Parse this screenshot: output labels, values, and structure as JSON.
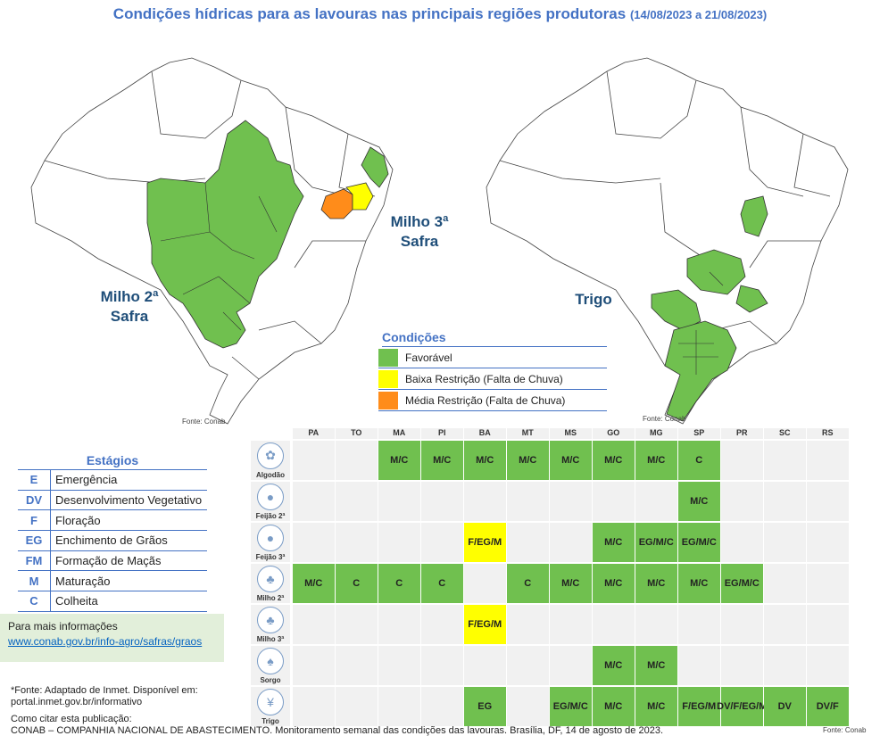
{
  "title": {
    "main": "Condições hídricas para as lavouras nas principais regiões produtoras",
    "dates": "(14/08/2023 a 21/08/2023)"
  },
  "colors": {
    "favoravel": "#70c04f",
    "baixa": "#ffff00",
    "media": "#ff8c1a",
    "accent": "#4472c4",
    "label": "#1f4e79",
    "cell": "#f1f1f1"
  },
  "maps": {
    "left": {
      "label_line1": "Milho 2ª",
      "label_line2": "Safra",
      "label_alt_line1": "Milho 3ª",
      "label_alt_line2": "Safra",
      "fonte": "Fonte: Conab"
    },
    "right": {
      "label": "Trigo",
      "fonte": "Fonte: Conab"
    }
  },
  "legend": {
    "title": "Condições",
    "items": [
      {
        "label": "Favorável",
        "color": "#70c04f"
      },
      {
        "label": "Baixa Restrição (Falta de Chuva)",
        "color": "#ffff00"
      },
      {
        "label": "Média Restrição (Falta de Chuva)",
        "color": "#ff8c1a"
      }
    ]
  },
  "stages": {
    "title": "Estágios",
    "items": [
      {
        "code": "E",
        "name": "Emergência"
      },
      {
        "code": "DV",
        "name": "Desenvolvimento Vegetativo"
      },
      {
        "code": "F",
        "name": "Floração"
      },
      {
        "code": "EG",
        "name": "Enchimento de Grãos"
      },
      {
        "code": "FM",
        "name": "Formação de Maçãs"
      },
      {
        "code": "M",
        "name": "Maturação"
      },
      {
        "code": "C",
        "name": "Colheita"
      }
    ]
  },
  "info": {
    "line1": "Para mais informações",
    "link": "www.conab.gov.br/info-agro/safras/graos"
  },
  "footer": {
    "fonte_line": "*Fonte: Adaptado de Inmet. Disponível em:",
    "fonte_link": "portal.inmet.gov.br/informativo",
    "citar": "Como citar esta publicação:",
    "citation": "CONAB – COMPANHIA NACIONAL DE ABASTECIMENTO. Monitoramento semanal das condições das lavouras. Brasília, DF, 14 de agosto de 2023.",
    "fonte_table": "Fonte: Conab"
  },
  "table": {
    "states": [
      "PA",
      "TO",
      "MA",
      "PI",
      "BA",
      "MT",
      "MS",
      "GO",
      "MG",
      "SP",
      "PR",
      "SC",
      "RS"
    ],
    "crops": [
      {
        "name": "Algodão",
        "icon": "✿",
        "cells": [
          "",
          "",
          "g:M/C",
          "g:M/C",
          "g:M/C",
          "g:M/C",
          "g:M/C",
          "g:M/C",
          "g:M/C",
          "g:C",
          "",
          "",
          ""
        ]
      },
      {
        "name": "Feijão 2ª",
        "icon": "●",
        "cells": [
          "",
          "",
          "",
          "",
          "",
          "",
          "",
          "",
          "",
          "g:M/C",
          "",
          "",
          ""
        ]
      },
      {
        "name": "Feijão 3ª",
        "icon": "●",
        "cells": [
          "",
          "",
          "",
          "",
          "y:F/EG/M",
          "",
          "",
          "g:M/C",
          "g:EG/M/C",
          "g:EG/M/C",
          "",
          "",
          ""
        ]
      },
      {
        "name": "Milho 2ª",
        "icon": "♣",
        "cells": [
          "g:M/C",
          "g:C",
          "g:C",
          "g:C",
          "",
          "g:C",
          "g:M/C",
          "g:M/C",
          "g:M/C",
          "g:M/C",
          "g:EG/M/C",
          "",
          ""
        ]
      },
      {
        "name": "Milho 3ª",
        "icon": "♣",
        "cells": [
          "",
          "",
          "",
          "",
          "y:F/EG/M",
          "",
          "",
          "",
          "",
          "",
          "",
          "",
          ""
        ]
      },
      {
        "name": "Sorgo",
        "icon": "♠",
        "cells": [
          "",
          "",
          "",
          "",
          "",
          "",
          "",
          "g:M/C",
          "g:M/C",
          "",
          "",
          "",
          ""
        ]
      },
      {
        "name": "Trigo",
        "icon": "¥",
        "cells": [
          "",
          "",
          "",
          "",
          "g:EG",
          "",
          "g:EG/M/C",
          "g:M/C",
          "g:M/C",
          "g:F/EG/M",
          "g:DV/F/EG/M",
          "g:DV",
          "g:DV/F"
        ]
      }
    ]
  }
}
